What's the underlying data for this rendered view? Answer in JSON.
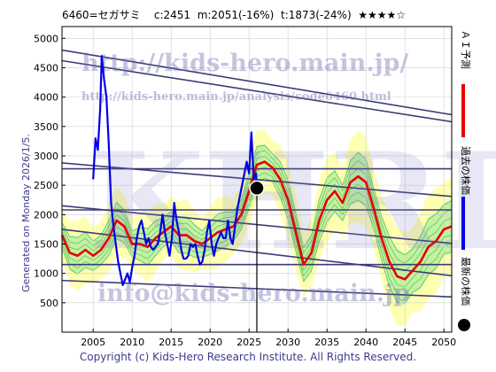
{
  "header": {
    "code_name": "6460=セガサミ",
    "current": "c:2451",
    "medium": "m:2051(-16%)",
    "target": "t:1873(-24%)",
    "stars": "★★★★☆"
  },
  "side_label": "Generated on Monday 2026/1/5.",
  "footer": "Copyright (c) Kids-Hero Research Institute. All Rights Reserved.",
  "watermarks": {
    "url": "http://kids-hero.main.jp/",
    "analysis_url": "http://kids-hero.main.jp/analysis/code6460.html",
    "brand": "KHRI",
    "email": "info@kids-hero.main.jp"
  },
  "legend": {
    "ai_forecast": "ＡＩ予測",
    "past_price": "過去の株価",
    "latest_price": "最新の株価"
  },
  "colors": {
    "past": "#0000e6",
    "forecast": "#e60000",
    "band_green": "#b8f0a0",
    "band_yellow": "#ffffa8",
    "channel": "#3c3c78"
  },
  "chart_data": {
    "type": "line",
    "xlim": [
      2001,
      2051
    ],
    "ylim": [
      0,
      5200
    ],
    "xticks": [
      "2005",
      "2010",
      "2015",
      "2020",
      "2025",
      "2030",
      "2035",
      "2040",
      "2045",
      "2050"
    ],
    "yticks": [
      "500",
      "1000",
      "1500",
      "2000",
      "2500",
      "3000",
      "3500",
      "4000",
      "4500",
      "5000"
    ],
    "latest": {
      "x": 2026.0,
      "y": 2451
    },
    "past_series": {
      "name": "過去の株価",
      "x": [
        2005.0,
        2005.3,
        2005.6,
        2005.9,
        2006.1,
        2006.4,
        2006.7,
        2007.0,
        2007.3,
        2007.6,
        2007.9,
        2008.2,
        2008.5,
        2008.8,
        2009.1,
        2009.4,
        2009.7,
        2010.0,
        2010.3,
        2010.6,
        2010.9,
        2011.2,
        2011.5,
        2011.8,
        2012.1,
        2012.4,
        2012.7,
        2013.0,
        2013.3,
        2013.6,
        2013.9,
        2014.2,
        2014.5,
        2014.8,
        2015.1,
        2015.4,
        2015.7,
        2016.0,
        2016.3,
        2016.6,
        2016.9,
        2017.2,
        2017.5,
        2017.8,
        2018.1,
        2018.4,
        2018.7,
        2019.0,
        2019.3,
        2019.6,
        2019.9,
        2020.2,
        2020.5,
        2020.8,
        2021.1,
        2021.4,
        2021.7,
        2022.0,
        2022.3,
        2022.6,
        2022.9,
        2023.2,
        2023.5,
        2023.8,
        2024.1,
        2024.4,
        2024.7,
        2025.0,
        2025.3,
        2025.6,
        2025.9,
        2026.0
      ],
      "y": [
        2600,
        3300,
        3100,
        3800,
        4700,
        4300,
        4000,
        3200,
        2200,
        1800,
        1500,
        1200,
        1000,
        800,
        900,
        1000,
        850,
        1100,
        1300,
        1600,
        1800,
        1900,
        1700,
        1500,
        1600,
        1450,
        1400,
        1450,
        1500,
        1700,
        2000,
        1700,
        1500,
        1300,
        1600,
        2200,
        1900,
        1700,
        1400,
        1250,
        1250,
        1300,
        1500,
        1450,
        1500,
        1300,
        1150,
        1200,
        1400,
        1700,
        1900,
        1500,
        1300,
        1500,
        1600,
        1700,
        1600,
        1600,
        1900,
        1600,
        1500,
        1800,
        2100,
        2300,
        2500,
        2700,
        2900,
        2700,
        3400,
        2600,
        2700,
        2451
      ]
    },
    "forecast_series": {
      "name": "ＡＩ予測",
      "x": [
        2001,
        2002,
        2003,
        2004,
        2005,
        2006,
        2007,
        2008,
        2009,
        2010,
        2011,
        2012,
        2013,
        2014,
        2015,
        2016,
        2017,
        2018,
        2019,
        2020,
        2021,
        2022,
        2023,
        2024,
        2025,
        2026,
        2027,
        2028,
        2029,
        2030,
        2031,
        2032,
        2033,
        2034,
        2035,
        2036,
        2037,
        2038,
        2039,
        2040,
        2041,
        2042,
        2043,
        2044,
        2045,
        2046,
        2047,
        2048,
        2049,
        2050,
        2051
      ],
      "y": [
        1650,
        1350,
        1300,
        1400,
        1300,
        1400,
        1600,
        1900,
        1800,
        1500,
        1500,
        1450,
        1600,
        1700,
        1800,
        1650,
        1650,
        1550,
        1500,
        1600,
        1700,
        1750,
        1800,
        2000,
        2400,
        2850,
        2900,
        2800,
        2600,
        2250,
        1700,
        1150,
        1350,
        1900,
        2250,
        2400,
        2200,
        2550,
        2650,
        2550,
        2100,
        1600,
        1200,
        950,
        900,
        1050,
        1200,
        1450,
        1550,
        1750,
        1800
      ]
    },
    "channels": [
      {
        "x": [
          2001,
          2051
        ],
        "y": [
          4800,
          3700
        ]
      },
      {
        "x": [
          2001,
          2051
        ],
        "y": [
          4620,
          3580
        ]
      },
      {
        "x": [
          2001,
          2051
        ],
        "y": [
          2880,
          2310
        ]
      },
      {
        "x": [
          2001,
          2051
        ],
        "y": [
          2780,
          2780
        ]
      },
      {
        "x": [
          2001,
          2051
        ],
        "y": [
          2150,
          1510
        ]
      },
      {
        "x": [
          2001,
          2051
        ],
        "y": [
          2080,
          2080
        ]
      },
      {
        "x": [
          2001,
          2051
        ],
        "y": [
          1750,
          960
        ]
      },
      {
        "x": [
          2001,
          2051
        ],
        "y": [
          1150,
          1150
        ]
      },
      {
        "x": [
          2001,
          2051
        ],
        "y": [
          880,
          600
        ]
      }
    ],
    "latest_marker_line": {
      "x": 2026.0
    }
  }
}
